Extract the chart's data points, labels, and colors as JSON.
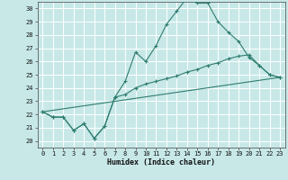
{
  "title": "",
  "xlabel": "Humidex (Indice chaleur)",
  "xlim": [
    -0.5,
    23.5
  ],
  "ylim": [
    19.5,
    30.5
  ],
  "xticks": [
    0,
    1,
    2,
    3,
    4,
    5,
    6,
    7,
    8,
    9,
    10,
    11,
    12,
    13,
    14,
    15,
    16,
    17,
    18,
    19,
    20,
    21,
    22,
    23
  ],
  "yticks": [
    20,
    21,
    22,
    23,
    24,
    25,
    26,
    27,
    28,
    29,
    30
  ],
  "background_color": "#c8e8e8",
  "grid_color": "#ffffff",
  "line_color": "#2e7d6e",
  "line1_x": [
    0,
    1,
    2,
    3,
    4,
    5,
    6,
    7,
    8,
    9,
    10,
    11,
    12,
    13,
    14,
    15,
    16,
    17,
    18,
    19,
    20,
    21,
    22,
    23
  ],
  "line1_y": [
    22.2,
    21.8,
    21.8,
    20.8,
    21.3,
    20.2,
    21.1,
    23.3,
    24.5,
    26.7,
    26.0,
    27.2,
    28.8,
    29.8,
    30.8,
    30.4,
    30.4,
    29.0,
    28.2,
    27.5,
    26.3,
    25.7,
    25.0,
    24.8
  ],
  "line2_x": [
    0,
    1,
    2,
    3,
    4,
    5,
    6,
    7,
    8,
    9,
    10,
    11,
    12,
    13,
    14,
    15,
    16,
    17,
    18,
    19,
    20,
    21,
    22,
    23
  ],
  "line2_y": [
    22.2,
    21.8,
    21.8,
    20.8,
    21.3,
    20.2,
    21.1,
    23.3,
    23.5,
    24.0,
    24.3,
    24.5,
    24.7,
    24.9,
    25.2,
    25.4,
    25.7,
    25.9,
    26.2,
    26.4,
    26.5,
    25.7,
    25.0,
    24.8
  ],
  "line3_x": [
    0,
    23
  ],
  "line3_y": [
    22.2,
    24.8
  ]
}
